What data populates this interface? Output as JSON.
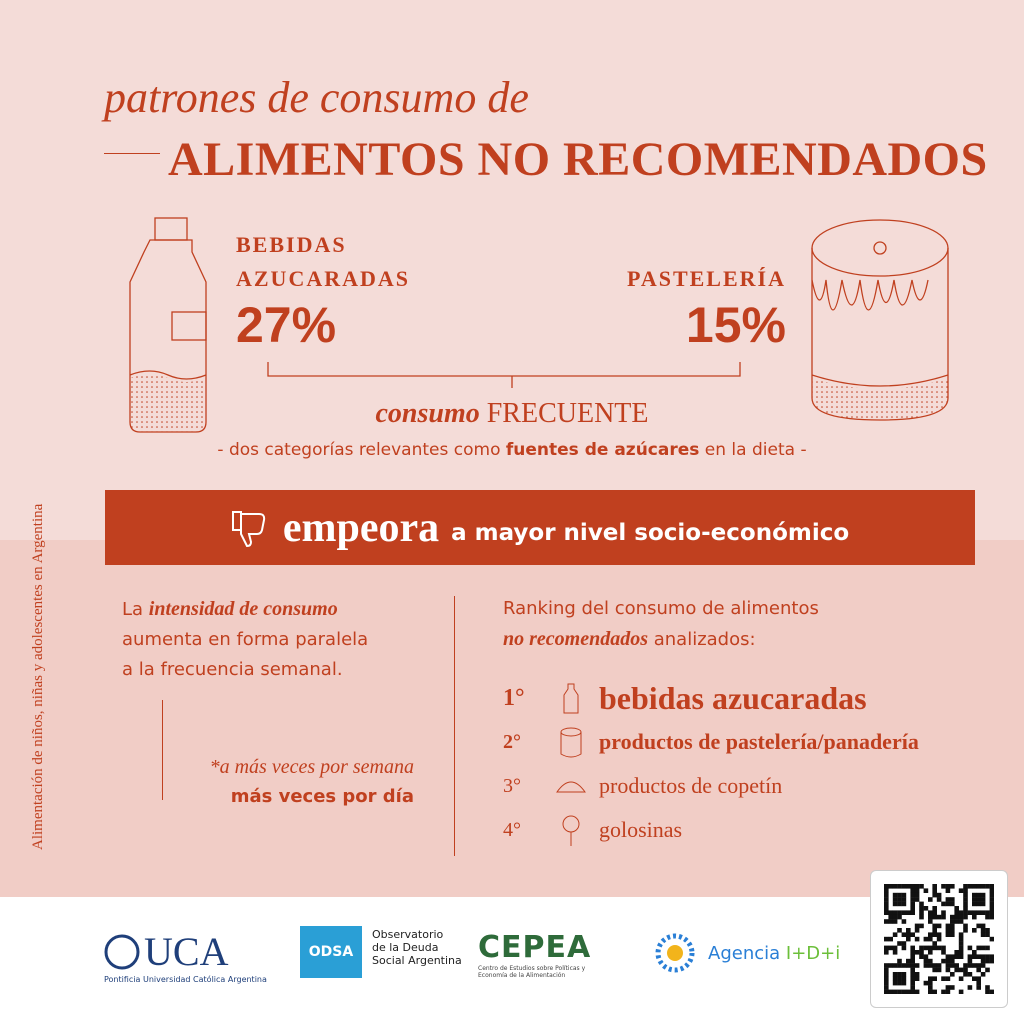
{
  "header": {
    "title_line1": "patrones de consumo de",
    "title_line2": "ALIMENTOS NO RECOMENDADOS"
  },
  "side_label": "Alimentación de niños, niñas y adolescentes en Argentina",
  "highlights": [
    {
      "label_lines": [
        "BEBIDAS",
        "AZUCARADAS"
      ],
      "value": "27%"
    },
    {
      "label_lines": [
        "PASTELERÍA"
      ],
      "value": "15%"
    }
  ],
  "frequency": {
    "italic": "consumo",
    "bold": "FRECUENTE",
    "note_before": "- dos categorías relevantes como",
    "note_bold": "fuentes de azúcares",
    "note_after": "en la dieta -"
  },
  "banner": {
    "strong": "empeora",
    "rest": "a mayor nivel socio-económico"
  },
  "intensity": {
    "before": "La",
    "emphasis": "intensidad de consumo",
    "after_lines": [
      "aumenta en forma paralela",
      "a la frecuencia semanal."
    ]
  },
  "footnote": {
    "italic": "*a más veces por semana",
    "bold": "más veces por día"
  },
  "ranking": {
    "intro": "Ranking del consumo de alimentos",
    "emphasis": "no recomendados",
    "intro_after": "analizados:",
    "items": [
      {
        "rank": "1°",
        "label": "bebidas azucaradas"
      },
      {
        "rank": "2°",
        "label": "productos de pastelería/panadería"
      },
      {
        "rank": "3°",
        "label": "productos de copetín"
      },
      {
        "rank": "4°",
        "label": "golosinas"
      }
    ]
  },
  "logos": {
    "uca": "UCA",
    "uca_sub": "Pontificia Universidad Católica Argentina",
    "odsa": "ODSA",
    "odsa_text": [
      "Observatorio",
      "de la Deuda",
      "Social Argentina"
    ],
    "cepea": "CEPEA",
    "cepea_sub": "Centro de Estudios sobre Políticas y Economía de la Alimentación",
    "agencia": "Agencia",
    "agencia_id": "I+D+i"
  }
}
